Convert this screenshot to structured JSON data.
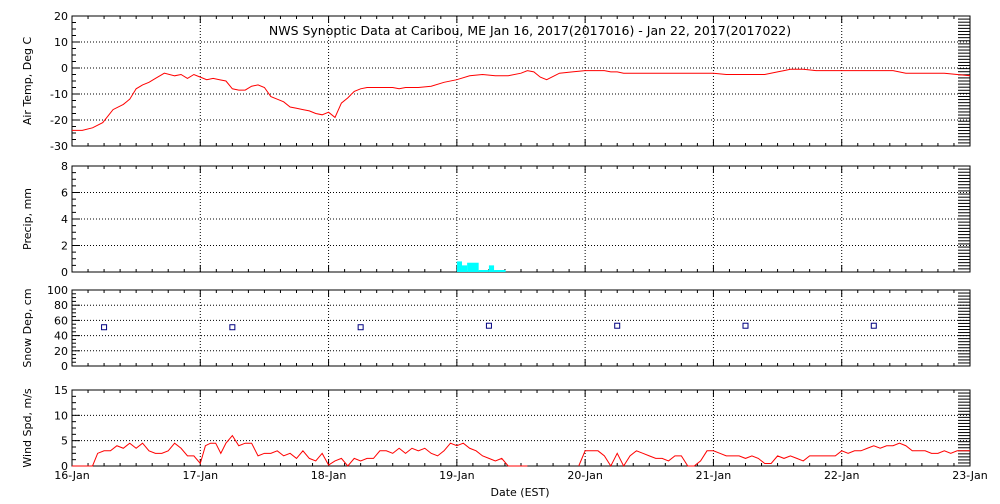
{
  "figure": {
    "title": "NWS Synoptic Data at Caribou, ME   Jan 16, 2017(2017016) - Jan 22, 2017(2017022)",
    "xlabel": "Date (EST)",
    "x_ticks": [
      "16-Jan",
      "17-Jan",
      "18-Jan",
      "19-Jan",
      "20-Jan",
      "21-Jan",
      "22-Jan",
      "23-Jan"
    ],
    "colors": {
      "temp": "#ff0000",
      "precip": "#00ffff",
      "snow": "#000080",
      "wind": "#ff0000",
      "axis": "#000000"
    }
  },
  "chart_data": [
    {
      "type": "line",
      "ylabel": "Air Temp, Deg C",
      "xlim": [
        0,
        7
      ],
      "ylim": [
        -30,
        20
      ],
      "yticks": [
        -30,
        -20,
        -10,
        0,
        10,
        20
      ],
      "grid": true,
      "series": [
        {
          "x": [
            0.0,
            0.08,
            0.16,
            0.24,
            0.32,
            0.4,
            0.45,
            0.5,
            0.55,
            0.6,
            0.65,
            0.72,
            0.8,
            0.85,
            0.9,
            0.95,
            1.0,
            1.05,
            1.1,
            1.15,
            1.2,
            1.25,
            1.3,
            1.35,
            1.4,
            1.45,
            1.5,
            1.55,
            1.6,
            1.65,
            1.7,
            1.75,
            1.8,
            1.85,
            1.9,
            1.95,
            2.0,
            2.05,
            2.1,
            2.15,
            2.2,
            2.25,
            2.3,
            2.35,
            2.4,
            2.45,
            2.5,
            2.55,
            2.6,
            2.7,
            2.8,
            2.9,
            3.0,
            3.1,
            3.2,
            3.3,
            3.4,
            3.5,
            3.55,
            3.6,
            3.65,
            3.7,
            3.8,
            3.9,
            4.0,
            4.05,
            4.1,
            4.15,
            4.2,
            4.25,
            4.3,
            4.35,
            4.4,
            4.45,
            4.5,
            4.6,
            4.7,
            4.8,
            4.9,
            5.0,
            5.1,
            5.2,
            5.3,
            5.4,
            5.5,
            5.55,
            5.6,
            5.65,
            5.7,
            5.8,
            5.9,
            6.0,
            6.1,
            6.2,
            6.25,
            6.3,
            6.35,
            6.4,
            6.5,
            6.6,
            6.7,
            6.8,
            6.9,
            7.0
          ],
          "y": [
            -24,
            -24,
            -23,
            -21,
            -16,
            -14,
            -12,
            -8,
            -6.5,
            -5.5,
            -4,
            -2,
            -3,
            -2.5,
            -4,
            -2.5,
            -3.5,
            -4.5,
            -4,
            -4.5,
            -5,
            -8,
            -8.5,
            -8.5,
            -7,
            -6.5,
            -7.5,
            -11,
            -12,
            -13,
            -15,
            -15.5,
            -16,
            -16.5,
            -17.5,
            -18,
            -17,
            -19,
            -13.5,
            -11.5,
            -9,
            -8,
            -7.5,
            -7.5,
            -7.5,
            -7.5,
            -7.5,
            -8,
            -7.5,
            -7.5,
            -7,
            -5.5,
            -4.5,
            -3,
            -2.5,
            -3,
            -3,
            -2,
            -1,
            -1.5,
            -3.5,
            -4.5,
            -2,
            -1.5,
            -1,
            -1,
            -1,
            -1,
            -1.5,
            -1.5,
            -2,
            -2,
            -2,
            -2,
            -2,
            -2,
            -2,
            -2,
            -2,
            -2,
            -2.5,
            -2.5,
            -2.5,
            -2.5,
            -1.5,
            -1,
            -0.5,
            -0.5,
            -0.5,
            -1,
            -1,
            -1,
            -1,
            -1,
            -1,
            -1,
            -1,
            -1,
            -2,
            -2,
            -2,
            -2,
            -2.5,
            -3
          ]
        }
      ]
    },
    {
      "type": "bar",
      "ylabel": "Precip, mm",
      "xlim": [
        0,
        7
      ],
      "ylim": [
        0,
        8
      ],
      "yticks": [
        0,
        2,
        4,
        6,
        8
      ],
      "grid": true,
      "bars": [
        {
          "x0": 3.0,
          "x1": 3.04,
          "value": 0.8
        },
        {
          "x0": 3.04,
          "x1": 3.08,
          "value": 0.5
        },
        {
          "x0": 3.08,
          "x1": 3.17,
          "value": 0.7
        },
        {
          "x0": 3.17,
          "x1": 3.25,
          "value": 0.15
        },
        {
          "x0": 3.25,
          "x1": 3.29,
          "value": 0.5
        },
        {
          "x0": 3.29,
          "x1": 3.38,
          "value": 0.15
        }
      ]
    },
    {
      "type": "scatter",
      "ylabel": "Snow Dep, cm",
      "xlim": [
        0,
        7
      ],
      "ylim": [
        0,
        100
      ],
      "yticks": [
        0,
        20,
        40,
        60,
        80,
        100
      ],
      "grid": true,
      "series": [
        {
          "x": [
            0.25,
            1.25,
            2.25,
            3.25,
            4.25,
            5.25,
            6.25
          ],
          "y": [
            51,
            51,
            51,
            53,
            53,
            53,
            53
          ]
        }
      ]
    },
    {
      "type": "line",
      "ylabel": "Wind Spd, m/s",
      "xlim": [
        0,
        7
      ],
      "ylim": [
        0,
        15
      ],
      "yticks": [
        0,
        5,
        10,
        15
      ],
      "grid": true,
      "segments": [
        {
          "x": [
            0.0,
            0.04,
            0.08,
            0.12,
            0.16,
            0.2,
            0.25,
            0.3,
            0.35,
            0.4,
            0.45,
            0.5,
            0.55,
            0.6,
            0.65,
            0.7,
            0.75,
            0.8,
            0.85,
            0.9,
            0.95,
            1.0,
            1.04,
            1.08,
            1.12,
            1.16,
            1.2,
            1.25,
            1.3,
            1.35,
            1.4,
            1.45,
            1.5,
            1.55,
            1.6,
            1.65,
            1.7,
            1.75,
            1.8,
            1.85,
            1.9,
            1.95,
            2.0,
            2.05,
            2.1,
            2.15,
            2.2,
            2.25,
            2.3,
            2.35,
            2.4,
            2.45,
            2.5,
            2.55,
            2.6,
            2.65,
            2.7,
            2.75,
            2.8,
            2.85,
            2.9,
            2.95,
            3.0,
            3.05,
            3.1,
            3.15,
            3.2,
            3.25,
            3.3,
            3.35,
            3.4,
            3.45,
            3.5,
            3.55
          ],
          "y": [
            0,
            0,
            0,
            0,
            0,
            2.5,
            3,
            3,
            4,
            3.5,
            4.5,
            3.5,
            4.5,
            3,
            2.5,
            2.5,
            3,
            4.5,
            3.5,
            2,
            2,
            0.5,
            4,
            4.5,
            4.5,
            2.5,
            4.5,
            6,
            4,
            4.5,
            4.5,
            2,
            2.5,
            2.5,
            3,
            2,
            2.5,
            1.5,
            3,
            1.5,
            1,
            2.5,
            0.2,
            1,
            1.5,
            0,
            1.5,
            1,
            1.5,
            1.5,
            3,
            3,
            2.5,
            3.5,
            2.5,
            3.5,
            3,
            3.5,
            2.5,
            2,
            3,
            4.5,
            4,
            4.5,
            3.5,
            3,
            2,
            1.5,
            1,
            1.5,
            0,
            0,
            0,
            0
          ]
        },
        {
          "x": [
            3.95,
            4.0,
            4.05,
            4.1,
            4.15,
            4.2,
            4.25,
            4.3,
            4.35,
            4.4,
            4.45,
            4.5,
            4.55,
            4.6,
            4.65,
            4.7,
            4.75,
            4.8,
            4.85,
            4.9,
            4.95,
            5.0,
            5.05,
            5.1,
            5.15,
            5.2,
            5.25,
            5.3,
            5.35,
            5.4,
            5.45,
            5.5,
            5.55,
            5.6,
            5.65,
            5.7,
            5.75,
            5.8,
            5.85,
            5.9,
            5.95,
            6.0,
            6.05,
            6.1,
            6.15,
            6.2,
            6.25,
            6.3,
            6.35,
            6.4,
            6.45,
            6.5,
            6.55,
            6.6,
            6.65,
            6.7,
            6.75,
            6.8,
            6.85,
            6.9,
            6.95,
            7.0
          ],
          "y": [
            0,
            3,
            3,
            3,
            2,
            0,
            2.5,
            0,
            2,
            3,
            2.5,
            2,
            1.5,
            1.5,
            1,
            2,
            2,
            0,
            0,
            1,
            3,
            3,
            2.5,
            2,
            2,
            2,
            1.5,
            2,
            1.5,
            0.5,
            0.5,
            2,
            1.5,
            2,
            1.5,
            1,
            2,
            2,
            2,
            2,
            2,
            3,
            2.5,
            3,
            3,
            3.5,
            4,
            3.5,
            4,
            4,
            4.5,
            4,
            3,
            3,
            3,
            2.5,
            2.5,
            3,
            2.5,
            3,
            3,
            3
          ]
        }
      ]
    }
  ]
}
